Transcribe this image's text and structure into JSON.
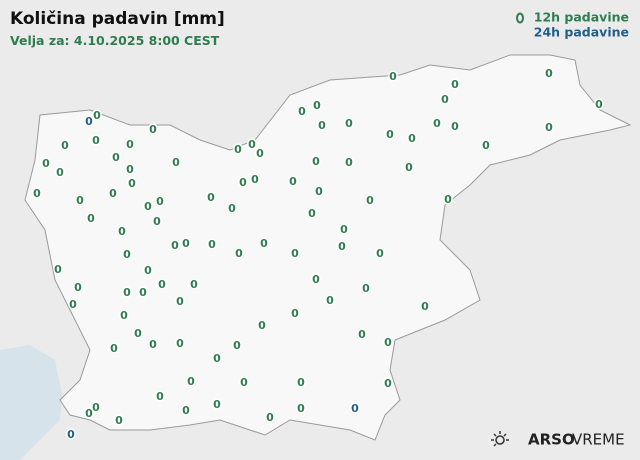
{
  "title": "Količina padavin [mm]",
  "subtitle": "Velja za: 4.10.2025 8:00 CEST",
  "brand": [
    "ARSO",
    "VREME"
  ],
  "layers": [
    {
      "name": "12h padavine",
      "color": "#2e7d4f",
      "values": [
        0,
        0,
        0,
        0,
        0,
        0,
        0,
        0,
        0,
        0,
        0,
        0,
        0,
        0,
        0,
        0,
        0,
        0,
        0,
        0,
        0,
        0,
        0,
        0,
        0,
        0,
        0,
        0,
        0,
        0,
        0,
        0,
        0,
        0,
        0,
        0,
        0,
        0,
        0,
        0,
        0,
        0,
        0,
        0,
        0,
        0,
        0,
        0,
        0,
        0,
        0,
        0,
        0,
        0,
        0,
        0,
        0,
        0,
        0,
        0,
        0,
        0,
        0,
        0,
        0,
        0,
        0,
        0,
        0,
        0,
        0,
        0,
        0,
        0,
        0,
        0,
        0,
        0,
        0,
        0,
        0,
        0,
        0,
        0,
        0,
        0,
        0,
        0,
        0,
        0,
        0,
        0,
        0,
        0,
        0
      ]
    },
    {
      "name": "24h padavine",
      "color": "#1f5f8b",
      "values": [
        0,
        0,
        0
      ]
    }
  ]
}
